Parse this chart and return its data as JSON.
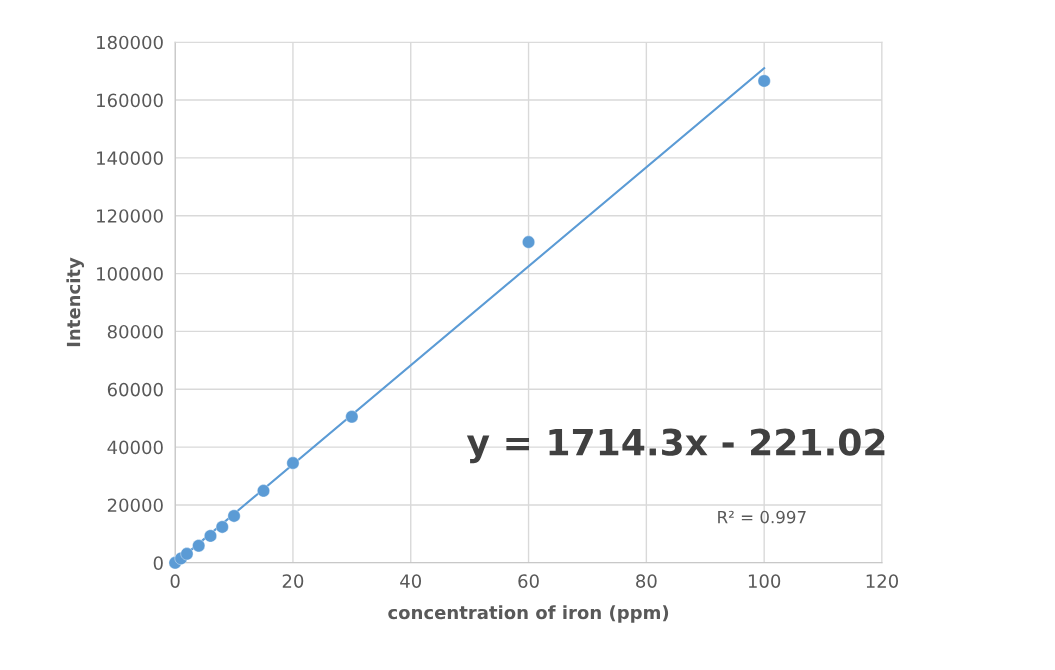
{
  "chart_data": {
    "type": "scatter",
    "xlabel": "concentration of iron (ppm)",
    "ylabel": "Intencity",
    "xlim": [
      0,
      120
    ],
    "xticks": [
      0,
      20,
      40,
      60,
      80,
      100,
      120
    ],
    "ylim": [
      0,
      180000
    ],
    "yticks": [
      0,
      20000,
      40000,
      60000,
      80000,
      100000,
      120000,
      140000,
      160000,
      180000
    ],
    "grid": true,
    "marker": "circle",
    "legend": false,
    "series": [
      {
        "color": "#5b9bd5",
        "x": [
          0,
          0.5,
          1,
          2,
          4,
          6,
          8,
          10,
          15,
          20,
          30,
          60,
          100
        ],
        "values": [
          0,
          null,
          1500,
          3100,
          5900,
          9300,
          12400,
          16200,
          24900,
          34500,
          50500,
          110900,
          166600
        ]
      },
      {
        "type": "line",
        "color": "#5b9bd5",
        "x": [
          0.7,
          100
        ],
        "values": [
          1000,
          171000
        ],
        "marker": "none"
      }
    ],
    "annotations": [
      "y = 1714.3x - 221.02",
      "R² = 0.997"
    ]
  }
}
